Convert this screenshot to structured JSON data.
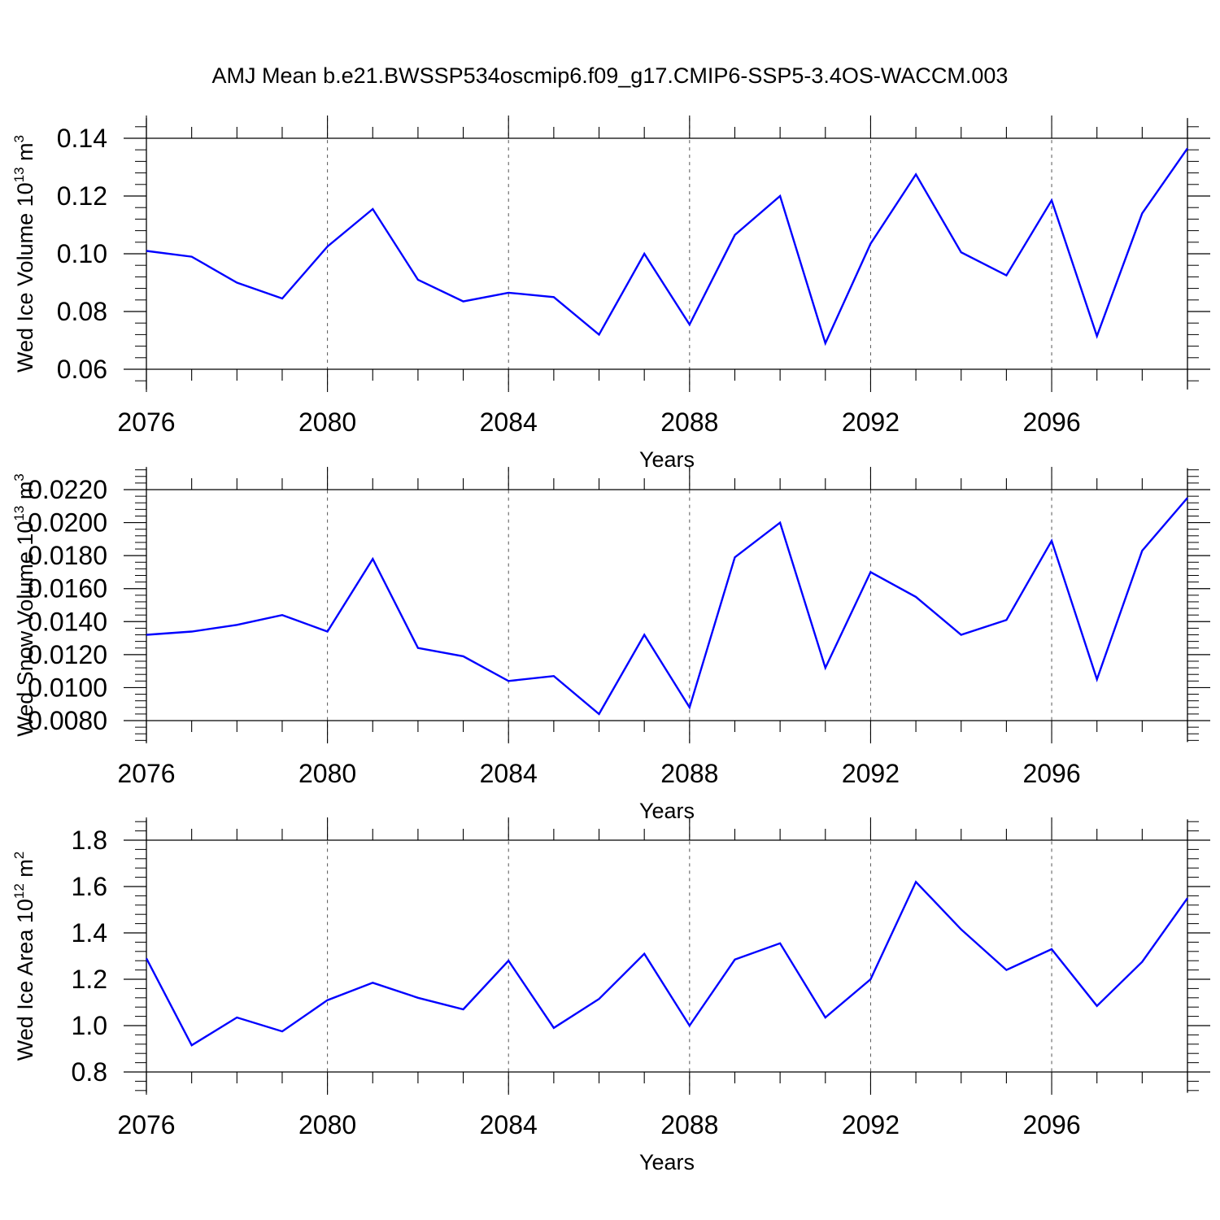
{
  "title": "AMJ Mean b.e21.BWSSP534oscmip6.f09_g17.CMIP6-SSP5-3.4OS-WACCM.003",
  "colors": {
    "line": "#0000ff",
    "axis": "#000000",
    "grid": "#555555"
  },
  "chart_data": [
    {
      "type": "line",
      "name": "ice-volume",
      "ylabel": {
        "text": "Wed Ice Volume 10",
        "sup": "13",
        "unit": " m",
        "unit_sup": "3"
      },
      "xlabel": "Years",
      "xlim": [
        2076,
        2099
      ],
      "xticks": [
        2076,
        2080,
        2084,
        2088,
        2092,
        2096
      ],
      "xtick_labels": [
        "2076",
        "2080",
        "2084",
        "2088",
        "2092",
        "2096"
      ],
      "ylim": [
        0.06,
        0.14
      ],
      "yticks": [
        0.06,
        0.08,
        0.1,
        0.12,
        0.14
      ],
      "ytick_labels": [
        "0.06",
        "0.08",
        "0.10",
        "0.12",
        "0.14"
      ],
      "yminor_step": 0.004,
      "yextend": 0.007,
      "x": [
        2076,
        2077,
        2078,
        2079,
        2080,
        2081,
        2082,
        2083,
        2084,
        2085,
        2086,
        2087,
        2088,
        2089,
        2090,
        2091,
        2092,
        2093,
        2094,
        2095,
        2096,
        2097,
        2098,
        2099
      ],
      "values": [
        0.101,
        0.099,
        0.09,
        0.0845,
        0.1025,
        0.1155,
        0.091,
        0.0835,
        0.0865,
        0.085,
        0.072,
        0.1,
        0.0755,
        0.1065,
        0.12,
        0.069,
        0.1035,
        0.1275,
        0.1005,
        0.0925,
        0.1185,
        0.0715,
        0.114,
        0.1365
      ]
    },
    {
      "type": "line",
      "name": "snow-volume",
      "ylabel": {
        "text": "Wed Snow Volume 10",
        "sup": "13",
        "unit": " m",
        "unit_sup": "3"
      },
      "xlabel": "Years",
      "xlim": [
        2076,
        2099
      ],
      "xticks": [
        2076,
        2080,
        2084,
        2088,
        2092,
        2096
      ],
      "xtick_labels": [
        "2076",
        "2080",
        "2084",
        "2088",
        "2092",
        "2096"
      ],
      "ylim": [
        0.008,
        0.022
      ],
      "yticks": [
        0.008,
        0.01,
        0.012,
        0.014,
        0.016,
        0.018,
        0.02,
        0.022
      ],
      "ytick_labels": [
        "0.0080",
        "0.0100",
        "0.0120",
        "0.0140",
        "0.0160",
        "0.0180",
        "0.0200",
        "0.0220"
      ],
      "yminor_step": 0.0004,
      "yextend": 0.0013,
      "x": [
        2076,
        2077,
        2078,
        2079,
        2080,
        2081,
        2082,
        2083,
        2084,
        2085,
        2086,
        2087,
        2088,
        2089,
        2090,
        2091,
        2092,
        2093,
        2094,
        2095,
        2096,
        2097,
        2098,
        2099
      ],
      "values": [
        0.0132,
        0.0134,
        0.0138,
        0.0144,
        0.0134,
        0.0178,
        0.0124,
        0.0119,
        0.0104,
        0.0107,
        0.0084,
        0.0132,
        0.0088,
        0.0179,
        0.02,
        0.0112,
        0.017,
        0.0155,
        0.0132,
        0.0141,
        0.0189,
        0.0105,
        0.0183,
        0.0215
      ]
    },
    {
      "type": "line",
      "name": "ice-area",
      "ylabel": {
        "text": "Wed Ice Area 10",
        "sup": "12",
        "unit": " m",
        "unit_sup": "2"
      },
      "xlabel": "Years",
      "xlim": [
        2076,
        2099
      ],
      "xticks": [
        2076,
        2080,
        2084,
        2088,
        2092,
        2096
      ],
      "xtick_labels": [
        "2076",
        "2080",
        "2084",
        "2088",
        "2092",
        "2096"
      ],
      "ylim": [
        0.8,
        1.8
      ],
      "yticks": [
        0.8,
        1.0,
        1.2,
        1.4,
        1.6,
        1.8
      ],
      "ytick_labels": [
        "0.8",
        "1.0",
        "1.2",
        "1.4",
        "1.6",
        "1.8"
      ],
      "yminor_step": 0.04,
      "yextend": 0.09,
      "x": [
        2076,
        2077,
        2078,
        2079,
        2080,
        2081,
        2082,
        2083,
        2084,
        2085,
        2086,
        2087,
        2088,
        2089,
        2090,
        2091,
        2092,
        2093,
        2094,
        2095,
        2096,
        2097,
        2098,
        2099
      ],
      "values": [
        1.29,
        0.915,
        1.035,
        0.975,
        1.11,
        1.185,
        1.12,
        1.07,
        1.28,
        0.99,
        1.115,
        1.31,
        1.0,
        1.285,
        1.355,
        1.035,
        1.2,
        1.62,
        1.415,
        1.24,
        1.33,
        1.085,
        1.275,
        1.55
      ]
    }
  ]
}
